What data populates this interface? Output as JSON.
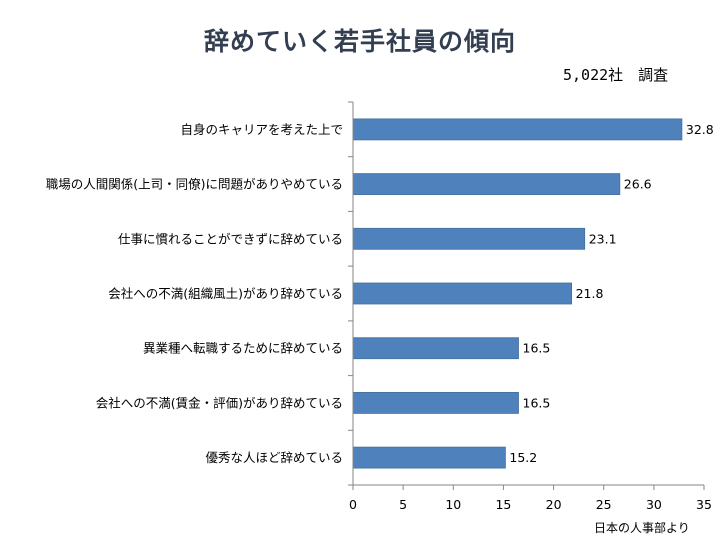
{
  "title": "辞めていく若手社員の傾向",
  "subtitle": "5,022社　調査",
  "source": "日本の人事部より",
  "colors": {
    "bar": "#4f81bd",
    "bar_stroke": "#41719c",
    "axis": "#868686"
  },
  "chart_data": {
    "type": "bar",
    "orientation": "horizontal",
    "title": "辞めていく若手社員の傾向",
    "categories": [
      "自身のキャリアを考えた上で",
      "職場の人間関係(上司・同僚)に問題がありやめている",
      "仕事に慣れることができずに辞めている",
      "会社への不満(組織風土)があり辞めている",
      "異業種へ転職するために辞めている",
      "会社への不満(賃金・評価)があり辞めている",
      "優秀な人ほど辞めている"
    ],
    "values": [
      32.8,
      26.6,
      23.1,
      21.8,
      16.5,
      16.5,
      15.2
    ],
    "data_labels": [
      "32.8",
      "26.6",
      "23.1",
      "21.8",
      "16.5",
      "16.5",
      "15.2"
    ],
    "xlim": [
      0,
      35
    ],
    "xticks": [
      "0",
      "5",
      "10",
      "15",
      "20",
      "25",
      "30",
      "35"
    ],
    "xlabel": "",
    "ylabel": "",
    "grid": false,
    "legend": "none"
  }
}
